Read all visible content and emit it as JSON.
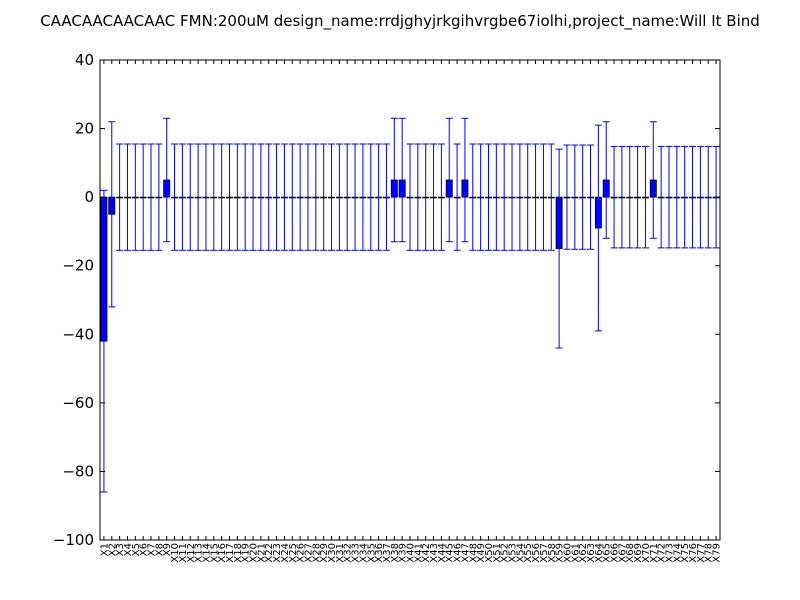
{
  "chart_data": {
    "type": "bar",
    "title": "CAACAACAACAAC  FMN:200uM  design_name:rrdjghyjrkgihvrgbe67iolhi,project_name:Will It Bind",
    "xlabel": "",
    "ylabel": "",
    "ylim": [
      -100,
      40
    ],
    "yticks": [
      -100,
      -80,
      -60,
      -40,
      -20,
      0,
      20,
      40
    ],
    "ytick_labels": [
      "−100",
      "−80",
      "−60",
      "−40",
      "−20",
      "0",
      "20",
      "40"
    ],
    "grid": false,
    "bar_color": "#0000ff",
    "error_color": "#0000ff",
    "categories": [
      "X1",
      "X2",
      "X3",
      "X4",
      "X5",
      "X6",
      "X7",
      "X8",
      "X9",
      "X10",
      "X11",
      "X12",
      "X13",
      "X14",
      "X15",
      "X16",
      "X17",
      "X18",
      "X19",
      "X20",
      "X21",
      "X22",
      "X23",
      "X24",
      "X25",
      "X26",
      "X27",
      "X28",
      "X29",
      "X30",
      "X31",
      "X32",
      "X33",
      "X34",
      "X35",
      "X36",
      "X37",
      "X38",
      "X39",
      "X40",
      "X41",
      "X42",
      "X43",
      "X44",
      "X45",
      "X46",
      "X47",
      "X48",
      "X49",
      "X50",
      "X51",
      "X52",
      "X53",
      "X54",
      "X55",
      "X56",
      "X57",
      "X58",
      "X59",
      "X60",
      "X61",
      "X62",
      "X63",
      "X64",
      "X65",
      "X66",
      "X67",
      "X68",
      "X69",
      "X70",
      "X71",
      "X72",
      "X73",
      "X74",
      "X75",
      "X76",
      "X77",
      "X78",
      "X79"
    ],
    "values": [
      -42,
      -5,
      0,
      0,
      0,
      0,
      0,
      0,
      5,
      0,
      0,
      0,
      0,
      0,
      0,
      0,
      0,
      0,
      0,
      0,
      0,
      0,
      0,
      0,
      0,
      0,
      0,
      0,
      0,
      0,
      0,
      0,
      0,
      0,
      0,
      0,
      0,
      5,
      5,
      0,
      0,
      0,
      0,
      0,
      5,
      0,
      5,
      0,
      0,
      0,
      0,
      0,
      0,
      0,
      0,
      0,
      0,
      0,
      -15,
      0,
      0,
      0,
      0,
      -9,
      5,
      0,
      0,
      0,
      0,
      0,
      5,
      0,
      0,
      0,
      0,
      0,
      0,
      0,
      0
    ],
    "errors": [
      44,
      27,
      15.5,
      15.5,
      15.5,
      15.5,
      15.5,
      15.5,
      18,
      15.5,
      15.5,
      15.5,
      15.5,
      15.5,
      15.5,
      15.5,
      15.5,
      15.5,
      15.5,
      15.5,
      15.5,
      15.5,
      15.5,
      15.5,
      15.5,
      15.5,
      15.5,
      15.5,
      15.5,
      15.5,
      15.5,
      15.5,
      15.5,
      15.5,
      15.5,
      15.5,
      15.5,
      18,
      18,
      15.5,
      15.5,
      15.5,
      15.5,
      15.5,
      18,
      15.5,
      18,
      15.5,
      15.5,
      15.5,
      15.5,
      15.5,
      15.5,
      15.5,
      15.5,
      15.5,
      15.5,
      15.5,
      29,
      15.2,
      15.2,
      15.2,
      15.2,
      30,
      17,
      14.8,
      14.8,
      14.8,
      14.8,
      14.8,
      17,
      14.8,
      14.8,
      14.8,
      14.8,
      14.8,
      14.8,
      14.8,
      14.8
    ]
  }
}
